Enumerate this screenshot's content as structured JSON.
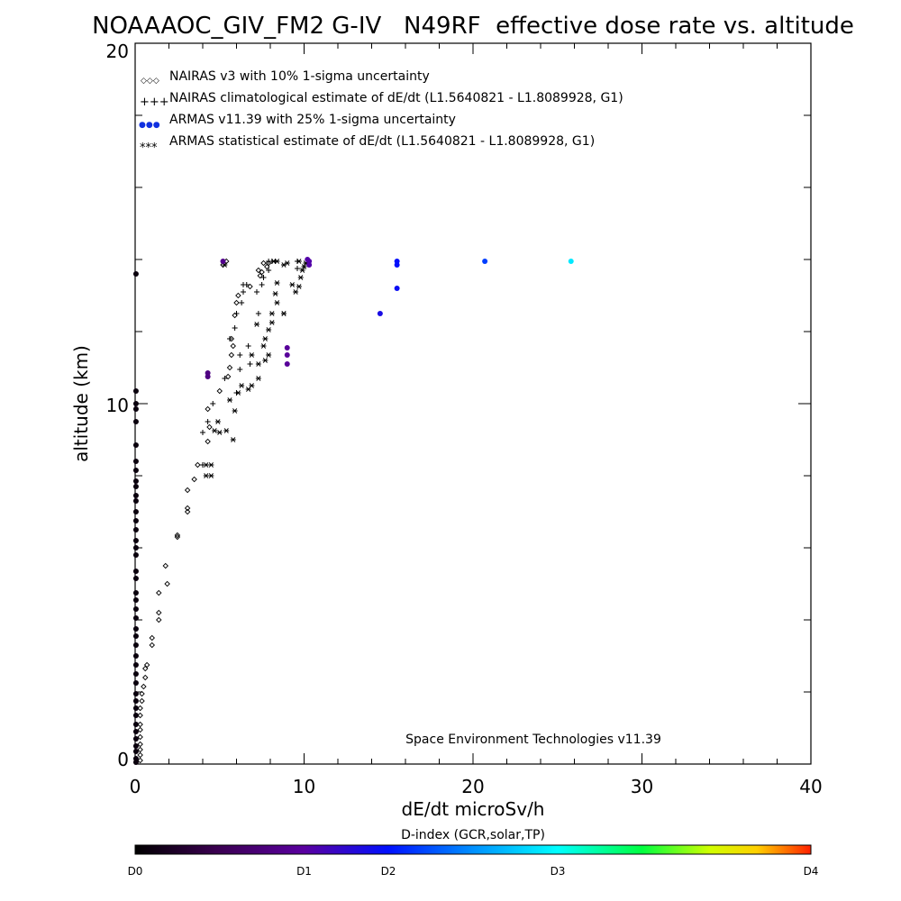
{
  "chart_data": {
    "type": "scatter",
    "title": "NOAAAOC_GIV_FM2 G-IV   N49RF  effective dose rate vs. altitude",
    "xlabel": "dE/dt microSv/h",
    "ylabel": "altitude (km)",
    "xlim": [
      0,
      40
    ],
    "ylim": [
      0,
      20
    ],
    "x_ticks": [
      "0",
      "10",
      "20",
      "30",
      "40"
    ],
    "y_ticks": [
      "0",
      "10",
      "20"
    ],
    "credit": "Space Environment Technologies v11.39",
    "legend_position": "top-left",
    "legend": [
      {
        "symbol": "◇◇◇",
        "label": "NAIRAS v3 with 10% 1-sigma uncertainty"
      },
      {
        "symbol": "+++",
        "label": "NAIRAS climatological estimate of dE/dt (L1.5640821 - L1.8089928, G1)"
      },
      {
        "symbol": "●●●",
        "label": "ARMAS v11.39 with 25% 1-sigma uncertainty"
      },
      {
        "symbol": "***",
        "label": "ARMAS statistical estimate of dE/dt (L1.5640821 - L1.8089928, G1)"
      }
    ],
    "colorbar": {
      "title": "D-index (GCR,solar,TP)",
      "labels": [
        {
          "text": "D0",
          "value": 0
        },
        {
          "text": "D1",
          "value": 0.25
        },
        {
          "text": "D2",
          "value": 0.375
        },
        {
          "text": "D3",
          "value": 0.625
        },
        {
          "text": "D4",
          "value": 1.0
        }
      ]
    },
    "series": [
      {
        "marker": "diamond",
        "color": "#000000",
        "points": [
          [
            0.3,
            0.1
          ],
          [
            0.3,
            0.25
          ],
          [
            0.3,
            0.4
          ],
          [
            0.3,
            0.55
          ],
          [
            0.3,
            0.75
          ],
          [
            0.3,
            0.95
          ],
          [
            0.3,
            1.1
          ],
          [
            0.3,
            1.35
          ],
          [
            0.3,
            1.55
          ],
          [
            0.4,
            1.75
          ],
          [
            0.4,
            1.95
          ],
          [
            0.5,
            2.15
          ],
          [
            0.6,
            2.4
          ],
          [
            0.6,
            2.65
          ],
          [
            0.7,
            2.75
          ],
          [
            1.0,
            3.3
          ],
          [
            1.0,
            3.5
          ],
          [
            1.4,
            4.0
          ],
          [
            1.4,
            4.2
          ],
          [
            1.4,
            4.75
          ],
          [
            1.9,
            5.0
          ],
          [
            1.8,
            5.5
          ],
          [
            2.5,
            6.3
          ],
          [
            2.5,
            6.35
          ],
          [
            3.1,
            7.0
          ],
          [
            3.1,
            7.1
          ],
          [
            3.1,
            7.6
          ],
          [
            3.5,
            7.9
          ],
          [
            3.7,
            8.3
          ],
          [
            4.3,
            8.95
          ],
          [
            4.4,
            9.35
          ],
          [
            4.3,
            9.85
          ],
          [
            5.0,
            10.35
          ],
          [
            5.5,
            10.75
          ],
          [
            5.6,
            11.0
          ],
          [
            5.7,
            11.35
          ],
          [
            5.8,
            11.6
          ],
          [
            5.7,
            11.8
          ],
          [
            5.9,
            12.45
          ],
          [
            6.0,
            12.8
          ],
          [
            6.1,
            13.0
          ],
          [
            7.3,
            13.7
          ],
          [
            7.5,
            13.65
          ],
          [
            7.6,
            13.9
          ],
          [
            7.8,
            13.8
          ],
          [
            7.9,
            13.9
          ],
          [
            7.4,
            13.55
          ],
          [
            5.2,
            13.85
          ],
          [
            5.4,
            13.95
          ],
          [
            6.8,
            13.25
          ]
        ]
      },
      {
        "marker": "plus",
        "color": "#000000",
        "points": [
          [
            4.0,
            8.3
          ],
          [
            4.0,
            9.2
          ],
          [
            4.3,
            9.5
          ],
          [
            4.6,
            10.0
          ],
          [
            5.3,
            10.7
          ],
          [
            6.0,
            10.3
          ],
          [
            6.2,
            10.95
          ],
          [
            6.2,
            11.35
          ],
          [
            6.8,
            11.1
          ],
          [
            6.7,
            11.6
          ],
          [
            5.6,
            11.8
          ],
          [
            5.9,
            12.1
          ],
          [
            6.0,
            12.5
          ],
          [
            7.3,
            12.5
          ],
          [
            6.3,
            12.8
          ],
          [
            6.4,
            13.1
          ],
          [
            7.2,
            13.1
          ],
          [
            7.5,
            13.3
          ],
          [
            7.6,
            13.5
          ],
          [
            7.9,
            13.7
          ],
          [
            7.9,
            13.95
          ],
          [
            8.1,
            13.95
          ],
          [
            8.3,
            13.95
          ],
          [
            9.6,
            13.75
          ],
          [
            9.6,
            13.95
          ],
          [
            6.4,
            13.3
          ],
          [
            6.6,
            13.3
          ]
        ]
      },
      {
        "marker": "asterisk",
        "color": "#000000",
        "points": [
          [
            4.2,
            8.3
          ],
          [
            4.5,
            8.3
          ],
          [
            4.2,
            8.0
          ],
          [
            4.5,
            8.0
          ],
          [
            4.7,
            9.25
          ],
          [
            4.9,
            9.5
          ],
          [
            5.0,
            9.2
          ],
          [
            5.4,
            9.25
          ],
          [
            5.8,
            9.0
          ],
          [
            5.9,
            9.8
          ],
          [
            5.6,
            10.1
          ],
          [
            6.1,
            10.3
          ],
          [
            6.3,
            10.5
          ],
          [
            6.7,
            10.4
          ],
          [
            6.9,
            10.5
          ],
          [
            7.3,
            10.7
          ],
          [
            6.9,
            11.35
          ],
          [
            7.3,
            11.1
          ],
          [
            7.7,
            11.2
          ],
          [
            7.9,
            11.35
          ],
          [
            7.6,
            11.6
          ],
          [
            7.7,
            11.8
          ],
          [
            7.9,
            12.05
          ],
          [
            7.2,
            12.2
          ],
          [
            8.1,
            12.25
          ],
          [
            8.1,
            12.5
          ],
          [
            8.8,
            12.5
          ],
          [
            8.8,
            12.5
          ],
          [
            8.4,
            12.8
          ],
          [
            8.3,
            13.05
          ],
          [
            9.5,
            13.1
          ],
          [
            9.7,
            13.25
          ],
          [
            9.8,
            13.5
          ],
          [
            9.9,
            13.7
          ],
          [
            10.0,
            13.8
          ],
          [
            10.1,
            13.9
          ],
          [
            8.8,
            13.85
          ],
          [
            9.0,
            13.9
          ],
          [
            9.3,
            13.3
          ],
          [
            8.4,
            13.35
          ],
          [
            5.3,
            13.85
          ],
          [
            8.2,
            13.95
          ],
          [
            8.4,
            13.95
          ],
          [
            9.7,
            13.95
          ]
        ]
      },
      {
        "marker": "dot",
        "name": "ARMAS",
        "points": [
          [
            0.05,
            0.05,
            0.02
          ],
          [
            0.05,
            0.15,
            0.02
          ],
          [
            0.05,
            0.35,
            0.02
          ],
          [
            0.05,
            0.5,
            0.02
          ],
          [
            0.05,
            0.7,
            0.02
          ],
          [
            0.05,
            0.9,
            0.02
          ],
          [
            0.05,
            1.1,
            0.02
          ],
          [
            0.05,
            1.35,
            0.02
          ],
          [
            0.05,
            1.55,
            0.02
          ],
          [
            0.05,
            1.75,
            0.02
          ],
          [
            0.05,
            1.95,
            0.02
          ],
          [
            0.05,
            2.25,
            0.02
          ],
          [
            0.05,
            2.5,
            0.02
          ],
          [
            0.05,
            2.75,
            0.02
          ],
          [
            0.05,
            3.0,
            0.02
          ],
          [
            0.05,
            3.3,
            0.02
          ],
          [
            0.05,
            3.55,
            0.02
          ],
          [
            0.05,
            3.75,
            0.02
          ],
          [
            0.05,
            4.05,
            0.02
          ],
          [
            0.05,
            4.3,
            0.02
          ],
          [
            0.05,
            4.55,
            0.02
          ],
          [
            0.05,
            4.75,
            0.02
          ],
          [
            0.05,
            5.15,
            0.02
          ],
          [
            0.05,
            5.35,
            0.02
          ],
          [
            0.05,
            5.8,
            0.02
          ],
          [
            0.05,
            6.0,
            0.02
          ],
          [
            0.05,
            6.2,
            0.02
          ],
          [
            0.05,
            6.5,
            0.02
          ],
          [
            0.05,
            6.75,
            0.02
          ],
          [
            0.05,
            7.0,
            0.02
          ],
          [
            0.05,
            7.3,
            0.02
          ],
          [
            0.05,
            7.45,
            0.02
          ],
          [
            0.05,
            7.7,
            0.02
          ],
          [
            0.05,
            7.85,
            0.02
          ],
          [
            0.05,
            8.15,
            0.02
          ],
          [
            0.05,
            8.4,
            0.02
          ],
          [
            0.05,
            8.85,
            0.02
          ],
          [
            0.05,
            9.5,
            0.02
          ],
          [
            0.05,
            9.85,
            0.02
          ],
          [
            0.05,
            10.0,
            0.02
          ],
          [
            0.05,
            10.35,
            0.02
          ],
          [
            0.05,
            13.6,
            0.02
          ],
          [
            4.3,
            10.85,
            0.2
          ],
          [
            4.3,
            10.75,
            0.2
          ],
          [
            5.2,
            13.95,
            0.22
          ],
          [
            9.0,
            11.55,
            0.24
          ],
          [
            9.0,
            11.35,
            0.24
          ],
          [
            9.0,
            11.1,
            0.24
          ],
          [
            10.3,
            13.95,
            0.26
          ],
          [
            10.3,
            13.85,
            0.26
          ],
          [
            10.2,
            14.0,
            0.26
          ],
          [
            14.5,
            12.5,
            0.34
          ],
          [
            15.5,
            13.2,
            0.36
          ],
          [
            15.5,
            13.85,
            0.37
          ],
          [
            15.5,
            13.95,
            0.37
          ],
          [
            20.7,
            13.95,
            0.42
          ],
          [
            25.8,
            13.95,
            0.6
          ]
        ]
      }
    ]
  }
}
